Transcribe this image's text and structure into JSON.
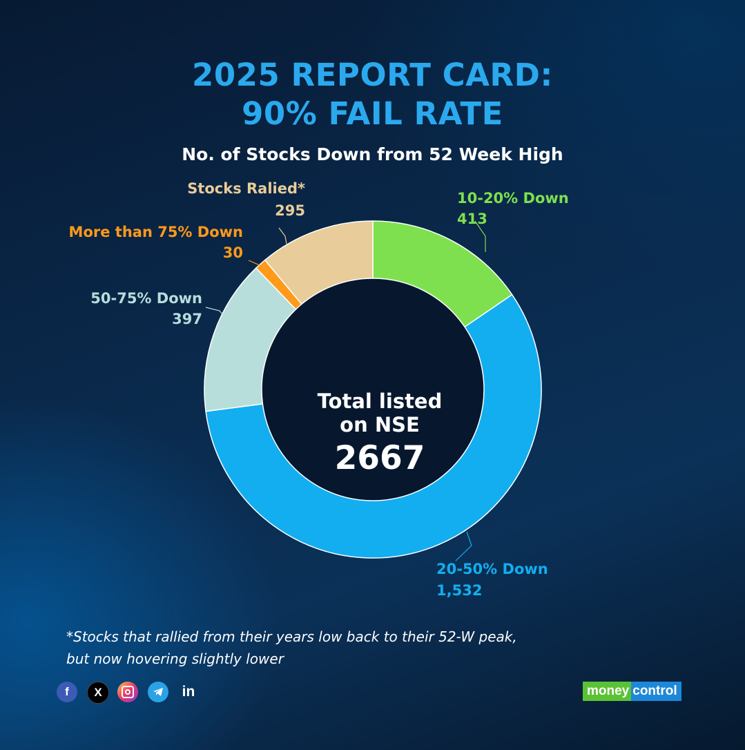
{
  "header": {
    "title_line1": "2025 REPORT CARD:",
    "title_line2": "90% FAIL RATE",
    "subtitle": "No. of Stocks Down from 52 Week High"
  },
  "center": {
    "line1": "Total listed",
    "line2": "on NSE",
    "value": "2667"
  },
  "chart_data": {
    "type": "pie",
    "title": "No. of Stocks Down from 52 Week High",
    "total": 2667,
    "series": [
      {
        "name": "10-20% Down",
        "value": 413,
        "value_label": "413",
        "color": "#7ee04e"
      },
      {
        "name": "20-50% Down",
        "value": 1532,
        "value_label": "1,532",
        "color": "#12aef0"
      },
      {
        "name": "50-75% Down",
        "value": 397,
        "value_label": "397",
        "color": "#b8dedb"
      },
      {
        "name": "More than 75% Down",
        "value": 30,
        "value_label": "30",
        "color": "#ff9a1a"
      },
      {
        "name": "Stocks Ralied*",
        "value": 295,
        "value_label": "295",
        "color": "#e8cc9a"
      }
    ]
  },
  "footnote": {
    "line1": "*Stocks that rallied from their years low back to their 52-W peak,",
    "line2": "but now hovering slightly lower"
  },
  "social_icons": [
    "facebook-icon",
    "x-icon",
    "instagram-icon",
    "telegram-icon",
    "linkedin-icon"
  ],
  "logo": {
    "part1": "money",
    "part2": "control"
  }
}
